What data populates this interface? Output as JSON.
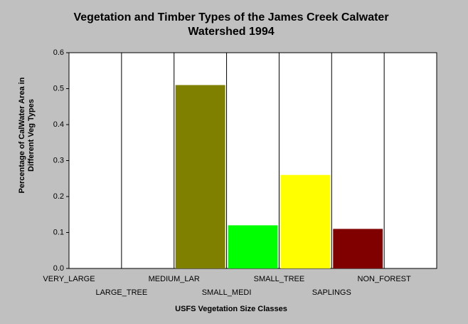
{
  "chart_data": {
    "type": "bar",
    "title": [
      "Vegetation and Timber Types of the James Creek Calwater",
      "Watershed 1994"
    ],
    "xlabel": "USFS Vegetation Size Classes",
    "ylabel": [
      "Percentage of CalWater Area in",
      "Different Veg Types"
    ],
    "categories": [
      "VERY_LARGE",
      "LARGE_TREE",
      "MEDIUM_LAR",
      "SMALL_MEDI",
      "SMALL_TREE",
      "SAPLINGS",
      "NON_FOREST"
    ],
    "values": [
      0,
      0,
      0.51,
      0.12,
      0.26,
      0.11,
      0
    ],
    "colors": [
      null,
      null,
      "#808000",
      "#00ff00",
      "#ffff00",
      "#800000",
      null
    ],
    "ylim": [
      0,
      0.6
    ],
    "yticks": [
      {
        "value": 0,
        "label": "0.0"
      },
      0.1,
      0.2,
      0.3,
      0.4,
      0.5,
      0.6
    ],
    "grid": "vertical"
  }
}
